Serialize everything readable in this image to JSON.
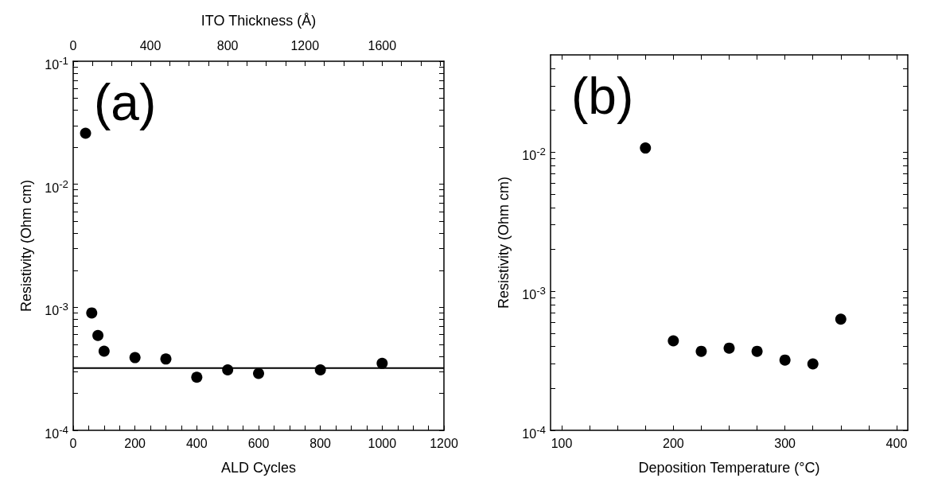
{
  "chart_data": [
    {
      "type": "scatter",
      "xlabel": "ALD Cycles",
      "ylabel": "Resistivity (Ohm cm)",
      "x2label": "ITO Thickness (Å)",
      "annotations": [
        "(a)"
      ],
      "color": "#000000",
      "marker": "circle",
      "log": "y",
      "x": [
        40,
        60,
        80,
        100,
        200,
        300,
        400,
        500,
        600,
        800,
        1000
      ],
      "values": [
        0.026,
        0.0009,
        0.00059,
        0.00044,
        0.00039,
        0.00038,
        0.00027,
        0.00031,
        0.00029,
        0.00031,
        0.00035
      ],
      "xlim": [
        0,
        1200
      ],
      "xticks": [
        0,
        {
          "value": 50,
          "label": null
        },
        {
          "value": 100,
          "label": null
        },
        {
          "value": 150,
          "label": null
        },
        200,
        {
          "value": 250,
          "label": null
        },
        {
          "value": 300,
          "label": null
        },
        {
          "value": 350,
          "label": null
        },
        400,
        {
          "value": 450,
          "label": null
        },
        {
          "value": 500,
          "label": null
        },
        {
          "value": 550,
          "label": null
        },
        600,
        {
          "value": 650,
          "label": null
        },
        {
          "value": 700,
          "label": null
        },
        {
          "value": 750,
          "label": null
        },
        800,
        {
          "value": 850,
          "label": null
        },
        {
          "value": 900,
          "label": null
        },
        {
          "value": 950,
          "label": null
        },
        1000,
        {
          "value": 1050,
          "label": null
        },
        {
          "value": 1100,
          "label": null
        },
        {
          "value": 1150,
          "label": null
        },
        1200
      ],
      "x2lim": [
        0,
        1920
      ],
      "x2ticks": [
        0,
        {
          "value": 100,
          "label": null
        },
        {
          "value": 200,
          "label": null
        },
        {
          "value": 300,
          "label": null
        },
        400,
        {
          "value": 500,
          "label": null
        },
        {
          "value": 600,
          "label": null
        },
        {
          "value": 700,
          "label": null
        },
        800,
        {
          "value": 900,
          "label": null
        },
        {
          "value": 1000,
          "label": null
        },
        {
          "value": 1100,
          "label": null
        },
        1200,
        {
          "value": 1300,
          "label": null
        },
        {
          "value": 1400,
          "label": null
        },
        {
          "value": 1500,
          "label": null
        },
        1600,
        {
          "value": 1700,
          "label": null
        },
        {
          "value": 1800,
          "label": null
        },
        {
          "value": 1900,
          "label": null
        }
      ],
      "ylim": [
        0.0001,
        0.1
      ],
      "yticks": [
        {
          "value": 0.0001,
          "label": "10$^{-4}$"
        },
        {
          "value": 0.0002,
          "label": null
        },
        {
          "value": 0.0003,
          "label": null
        },
        {
          "value": 0.0004,
          "label": null
        },
        {
          "value": 0.0005,
          "label": null
        },
        {
          "value": 0.0006,
          "label": null
        },
        {
          "value": 0.0007,
          "label": null
        },
        {
          "value": 0.0008,
          "label": null
        },
        {
          "value": 0.0009,
          "label": null
        },
        {
          "value": 0.001,
          "label": "10$^{-3}$"
        },
        {
          "value": 0.002,
          "label": null
        },
        {
          "value": 0.003,
          "label": null
        },
        {
          "value": 0.004,
          "label": null
        },
        {
          "value": 0.005,
          "label": null
        },
        {
          "value": 0.006,
          "label": null
        },
        {
          "value": 0.007,
          "label": null
        },
        {
          "value": 0.008,
          "label": null
        },
        {
          "value": 0.009,
          "label": null
        },
        {
          "value": 0.01,
          "label": "10$^{-2}$"
        },
        {
          "value": 0.02,
          "label": null
        },
        {
          "value": 0.03,
          "label": null
        },
        {
          "value": 0.04,
          "label": null
        },
        {
          "value": 0.05,
          "label": null
        },
        {
          "value": 0.06,
          "label": null
        },
        {
          "value": 0.07,
          "label": null
        },
        {
          "value": 0.08,
          "label": null
        },
        {
          "value": 0.09,
          "label": null
        },
        {
          "value": 0.1,
          "label": "10$^{-1}$"
        }
      ],
      "ref_lines": [
        {
          "axis": "y",
          "value": 0.00032,
          "color": "#000000",
          "line_style": "solid"
        }
      ]
    },
    {
      "type": "scatter",
      "xlabel": "Deposition Temperature (°C)",
      "ylabel": "Resistivity (Ohm cm)",
      "annotations": [
        "(b)"
      ],
      "color": "#000000",
      "marker": "circle",
      "log": "y",
      "x": [
        175,
        200,
        225,
        250,
        275,
        300,
        325,
        350
      ],
      "values": [
        0.0107,
        0.00044,
        0.00037,
        0.00039,
        0.00037,
        0.00032,
        0.0003,
        0.00063
      ],
      "xlim": [
        90,
        410
      ],
      "xticks": [
        100,
        {
          "value": 125,
          "label": null
        },
        {
          "value": 150,
          "label": null
        },
        {
          "value": 175,
          "label": null
        },
        200,
        {
          "value": 225,
          "label": null
        },
        {
          "value": 250,
          "label": null
        },
        {
          "value": 275,
          "label": null
        },
        300,
        {
          "value": 325,
          "label": null
        },
        {
          "value": 350,
          "label": null
        },
        {
          "value": 375,
          "label": null
        },
        400
      ],
      "ylim": [
        0.0001,
        0.05
      ],
      "yticks": [
        {
          "value": 0.0001,
          "label": "10$^{-4}$"
        },
        {
          "value": 0.0002,
          "label": null
        },
        {
          "value": 0.0003,
          "label": null
        },
        {
          "value": 0.0004,
          "label": null
        },
        {
          "value": 0.0005,
          "label": null
        },
        {
          "value": 0.0006,
          "label": null
        },
        {
          "value": 0.0007,
          "label": null
        },
        {
          "value": 0.0008,
          "label": null
        },
        {
          "value": 0.0009,
          "label": null
        },
        {
          "value": 0.001,
          "label": "10$^{-3}$"
        },
        {
          "value": 0.002,
          "label": null
        },
        {
          "value": 0.003,
          "label": null
        },
        {
          "value": 0.004,
          "label": null
        },
        {
          "value": 0.005,
          "label": null
        },
        {
          "value": 0.006,
          "label": null
        },
        {
          "value": 0.007,
          "label": null
        },
        {
          "value": 0.008,
          "label": null
        },
        {
          "value": 0.009,
          "label": null
        },
        {
          "value": 0.01,
          "label": "10$^{-2}$"
        },
        {
          "value": 0.02,
          "label": null
        },
        {
          "value": 0.03,
          "label": null
        },
        {
          "value": 0.04,
          "label": null
        }
      ]
    }
  ]
}
